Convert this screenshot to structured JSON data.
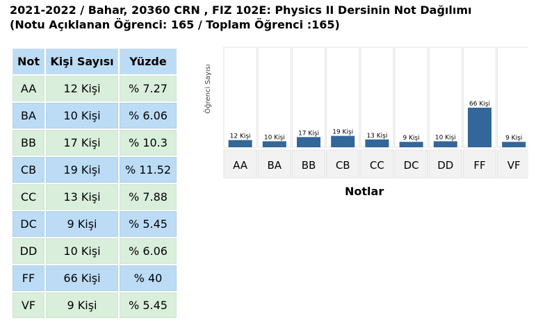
{
  "header": {
    "line1": "2021-2022 / Bahar, 20360 CRN , FIZ 102E: Physics II Dersinin Not Dağılımı",
    "line2": "(Notu Açıklanan Öğrenci: 165 / Toplam Öğrenci :165)"
  },
  "table": {
    "headers": [
      "Not",
      "Kişi Sayısı",
      "Yüzde"
    ],
    "rows": [
      [
        "AA",
        "12 Kişi",
        "% 7.27"
      ],
      [
        "BA",
        "10 Kişi",
        "% 6.06"
      ],
      [
        "BB",
        "17 Kişi",
        "% 10.3"
      ],
      [
        "CB",
        "19 Kişi",
        "% 11.52"
      ],
      [
        "CC",
        "13 Kişi",
        "% 7.88"
      ],
      [
        "DC",
        "9 Kişi",
        "% 5.45"
      ],
      [
        "DD",
        "10 Kişi",
        "% 6.06"
      ],
      [
        "FF",
        "66 Kişi",
        "% 40"
      ],
      [
        "VF",
        "9 Kişi",
        "% 5.45"
      ]
    ]
  },
  "chart_data": {
    "type": "bar",
    "categories": [
      "AA",
      "BA",
      "BB",
      "CB",
      "CC",
      "DC",
      "DD",
      "FF",
      "VF"
    ],
    "values": [
      12,
      10,
      17,
      19,
      13,
      9,
      10,
      66,
      9
    ],
    "data_labels": [
      "12 Kişi",
      "10 Kişi",
      "17 Kişi",
      "19 Kişi",
      "13 Kişi",
      "9 Kişi",
      "10 Kişi",
      "66 Kişi",
      "9 Kişi"
    ],
    "title": "",
    "xlabel": "Notlar",
    "ylabel": "Öğrenci Sayısı",
    "ylim": [
      0,
      66
    ],
    "bar_color": "#336699",
    "grid": false
  }
}
